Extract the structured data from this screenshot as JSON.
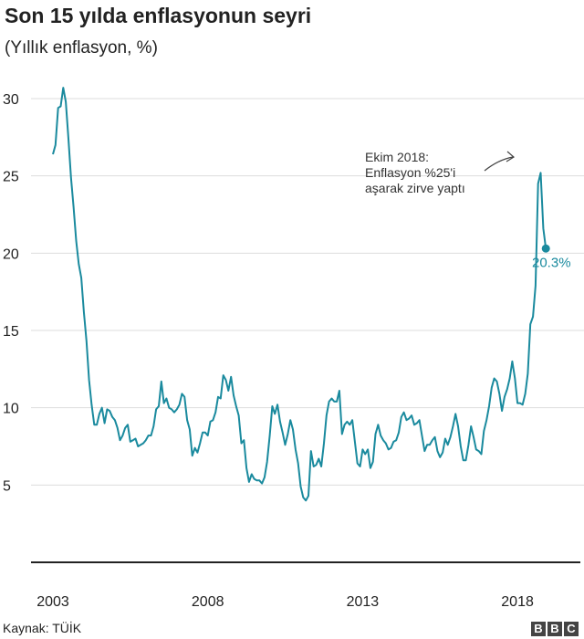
{
  "header": {
    "title": "Son 15 yılda enflasyonun seyri",
    "subtitle": "(Yıllık enflasyon, %)"
  },
  "footer": {
    "source": "Kaynak: TÜİK",
    "logo_letters": [
      "B",
      "B",
      "C"
    ]
  },
  "colors": {
    "line": "#1a8a9e",
    "grid": "#dddddd",
    "axis": "#222222",
    "end_label": "#1a8a9e",
    "logo_bg": "#444444"
  },
  "chart_data": {
    "type": "line",
    "title": "Son 15 yılda enflasyonun seyri",
    "subtitle": "(Yıllık enflasyon, %)",
    "xlabel": "",
    "ylabel": "",
    "xlim": [
      2003,
      2019.5
    ],
    "ylim": [
      0,
      30
    ],
    "x_ticks": [
      "2003",
      "2008",
      "2013",
      "2018"
    ],
    "y_ticks": [
      "5",
      "10",
      "15",
      "20",
      "25",
      "30"
    ],
    "grid": true,
    "legend": "none",
    "annotation": {
      "lines": [
        "Ekim 2018:",
        "Enflasyon %25'i",
        "aşarak zirve yaptı"
      ],
      "arrow_target_date": "2018-10",
      "arrow_target_value": 25.2
    },
    "end_label": "20.3%",
    "series": [
      {
        "name": "",
        "points": [
          [
            "2003-01",
            26.4
          ],
          [
            "2003-02",
            27.0
          ],
          [
            "2003-03",
            29.4
          ],
          [
            "2003-04",
            29.5
          ],
          [
            "2003-05",
            30.7
          ],
          [
            "2003-06",
            29.8
          ],
          [
            "2003-07",
            27.4
          ],
          [
            "2003-08",
            24.9
          ],
          [
            "2003-09",
            23.0
          ],
          [
            "2003-10",
            20.8
          ],
          [
            "2003-11",
            19.3
          ],
          [
            "2003-12",
            18.4
          ],
          [
            "2004-01",
            16.2
          ],
          [
            "2004-02",
            14.3
          ],
          [
            "2004-03",
            11.8
          ],
          [
            "2004-04",
            10.2
          ],
          [
            "2004-05",
            8.9
          ],
          [
            "2004-06",
            8.9
          ],
          [
            "2004-07",
            9.6
          ],
          [
            "2004-08",
            10.0
          ],
          [
            "2004-09",
            9.0
          ],
          [
            "2004-10",
            9.9
          ],
          [
            "2004-11",
            9.8
          ],
          [
            "2004-12",
            9.4
          ],
          [
            "2005-01",
            9.2
          ],
          [
            "2005-02",
            8.7
          ],
          [
            "2005-03",
            7.9
          ],
          [
            "2005-04",
            8.2
          ],
          [
            "2005-05",
            8.7
          ],
          [
            "2005-06",
            8.9
          ],
          [
            "2005-07",
            7.8
          ],
          [
            "2005-08",
            7.9
          ],
          [
            "2005-09",
            8.0
          ],
          [
            "2005-10",
            7.5
          ],
          [
            "2005-11",
            7.6
          ],
          [
            "2005-12",
            7.7
          ],
          [
            "2006-01",
            7.9
          ],
          [
            "2006-02",
            8.2
          ],
          [
            "2006-03",
            8.2
          ],
          [
            "2006-04",
            8.8
          ],
          [
            "2006-05",
            9.9
          ],
          [
            "2006-06",
            10.1
          ],
          [
            "2006-07",
            11.7
          ],
          [
            "2006-08",
            10.3
          ],
          [
            "2006-09",
            10.6
          ],
          [
            "2006-10",
            10.0
          ],
          [
            "2006-11",
            9.9
          ],
          [
            "2006-12",
            9.7
          ],
          [
            "2007-01",
            9.9
          ],
          [
            "2007-02",
            10.2
          ],
          [
            "2007-03",
            10.9
          ],
          [
            "2007-04",
            10.7
          ],
          [
            "2007-05",
            9.2
          ],
          [
            "2007-06",
            8.6
          ],
          [
            "2007-07",
            6.9
          ],
          [
            "2007-08",
            7.4
          ],
          [
            "2007-09",
            7.1
          ],
          [
            "2007-10",
            7.7
          ],
          [
            "2007-11",
            8.4
          ],
          [
            "2007-12",
            8.4
          ],
          [
            "2008-01",
            8.2
          ],
          [
            "2008-02",
            9.1
          ],
          [
            "2008-03",
            9.2
          ],
          [
            "2008-04",
            9.7
          ],
          [
            "2008-05",
            10.7
          ],
          [
            "2008-06",
            10.6
          ],
          [
            "2008-07",
            12.1
          ],
          [
            "2008-08",
            11.8
          ],
          [
            "2008-09",
            11.1
          ],
          [
            "2008-10",
            12.0
          ],
          [
            "2008-11",
            10.8
          ],
          [
            "2008-12",
            10.1
          ],
          [
            "2009-01",
            9.5
          ],
          [
            "2009-02",
            7.7
          ],
          [
            "2009-03",
            7.9
          ],
          [
            "2009-04",
            6.1
          ],
          [
            "2009-05",
            5.2
          ],
          [
            "2009-06",
            5.7
          ],
          [
            "2009-07",
            5.4
          ],
          [
            "2009-08",
            5.3
          ],
          [
            "2009-09",
            5.3
          ],
          [
            "2009-10",
            5.1
          ],
          [
            "2009-11",
            5.5
          ],
          [
            "2009-12",
            6.5
          ],
          [
            "2010-01",
            8.2
          ],
          [
            "2010-02",
            10.1
          ],
          [
            "2010-03",
            9.6
          ],
          [
            "2010-04",
            10.2
          ],
          [
            "2010-05",
            9.1
          ],
          [
            "2010-06",
            8.4
          ],
          [
            "2010-07",
            7.6
          ],
          [
            "2010-08",
            8.3
          ],
          [
            "2010-09",
            9.2
          ],
          [
            "2010-10",
            8.6
          ],
          [
            "2010-11",
            7.3
          ],
          [
            "2010-12",
            6.4
          ],
          [
            "2011-01",
            4.9
          ],
          [
            "2011-02",
            4.2
          ],
          [
            "2011-03",
            4.0
          ],
          [
            "2011-04",
            4.3
          ],
          [
            "2011-05",
            7.2
          ],
          [
            "2011-06",
            6.2
          ],
          [
            "2011-07",
            6.3
          ],
          [
            "2011-08",
            6.7
          ],
          [
            "2011-09",
            6.2
          ],
          [
            "2011-10",
            7.7
          ],
          [
            "2011-11",
            9.5
          ],
          [
            "2011-12",
            10.4
          ],
          [
            "2012-01",
            10.6
          ],
          [
            "2012-02",
            10.4
          ],
          [
            "2012-03",
            10.4
          ],
          [
            "2012-04",
            11.1
          ],
          [
            "2012-05",
            8.3
          ],
          [
            "2012-06",
            8.9
          ],
          [
            "2012-07",
            9.1
          ],
          [
            "2012-08",
            8.9
          ],
          [
            "2012-09",
            9.2
          ],
          [
            "2012-10",
            7.8
          ],
          [
            "2012-11",
            6.4
          ],
          [
            "2012-12",
            6.2
          ],
          [
            "2013-01",
            7.3
          ],
          [
            "2013-02",
            7.0
          ],
          [
            "2013-03",
            7.3
          ],
          [
            "2013-04",
            6.1
          ],
          [
            "2013-05",
            6.5
          ],
          [
            "2013-06",
            8.3
          ],
          [
            "2013-07",
            8.9
          ],
          [
            "2013-08",
            8.2
          ],
          [
            "2013-09",
            7.9
          ],
          [
            "2013-10",
            7.7
          ],
          [
            "2013-11",
            7.3
          ],
          [
            "2013-12",
            7.4
          ],
          [
            "2014-01",
            7.8
          ],
          [
            "2014-02",
            7.9
          ],
          [
            "2014-03",
            8.4
          ],
          [
            "2014-04",
            9.4
          ],
          [
            "2014-05",
            9.7
          ],
          [
            "2014-06",
            9.2
          ],
          [
            "2014-07",
            9.3
          ],
          [
            "2014-08",
            9.5
          ],
          [
            "2014-09",
            8.9
          ],
          [
            "2014-10",
            9.0
          ],
          [
            "2014-11",
            9.2
          ],
          [
            "2014-12",
            8.2
          ],
          [
            "2015-01",
            7.2
          ],
          [
            "2015-02",
            7.6
          ],
          [
            "2015-03",
            7.6
          ],
          [
            "2015-04",
            7.9
          ],
          [
            "2015-05",
            8.1
          ],
          [
            "2015-06",
            7.2
          ],
          [
            "2015-07",
            6.8
          ],
          [
            "2015-08",
            7.1
          ],
          [
            "2015-09",
            8.0
          ],
          [
            "2015-10",
            7.6
          ],
          [
            "2015-11",
            8.1
          ],
          [
            "2015-12",
            8.8
          ],
          [
            "2016-01",
            9.6
          ],
          [
            "2016-02",
            8.8
          ],
          [
            "2016-03",
            7.5
          ],
          [
            "2016-04",
            6.6
          ],
          [
            "2016-05",
            6.6
          ],
          [
            "2016-06",
            7.6
          ],
          [
            "2016-07",
            8.8
          ],
          [
            "2016-08",
            8.1
          ],
          [
            "2016-09",
            7.3
          ],
          [
            "2016-10",
            7.2
          ],
          [
            "2016-11",
            7.0
          ],
          [
            "2016-12",
            8.5
          ],
          [
            "2017-01",
            9.2
          ],
          [
            "2017-02",
            10.1
          ],
          [
            "2017-03",
            11.3
          ],
          [
            "2017-04",
            11.9
          ],
          [
            "2017-05",
            11.7
          ],
          [
            "2017-06",
            10.9
          ],
          [
            "2017-07",
            9.8
          ],
          [
            "2017-08",
            10.7
          ],
          [
            "2017-09",
            11.2
          ],
          [
            "2017-10",
            11.9
          ],
          [
            "2017-11",
            13.0
          ],
          [
            "2017-12",
            11.9
          ],
          [
            "2018-01",
            10.3
          ],
          [
            "2018-02",
            10.3
          ],
          [
            "2018-03",
            10.2
          ],
          [
            "2018-04",
            10.9
          ],
          [
            "2018-05",
            12.2
          ],
          [
            "2018-06",
            15.4
          ],
          [
            "2018-07",
            15.9
          ],
          [
            "2018-08",
            17.9
          ],
          [
            "2018-09",
            24.5
          ],
          [
            "2018-10",
            25.2
          ],
          [
            "2018-11",
            21.6
          ],
          [
            "2018-12",
            20.3
          ]
        ]
      }
    ]
  }
}
